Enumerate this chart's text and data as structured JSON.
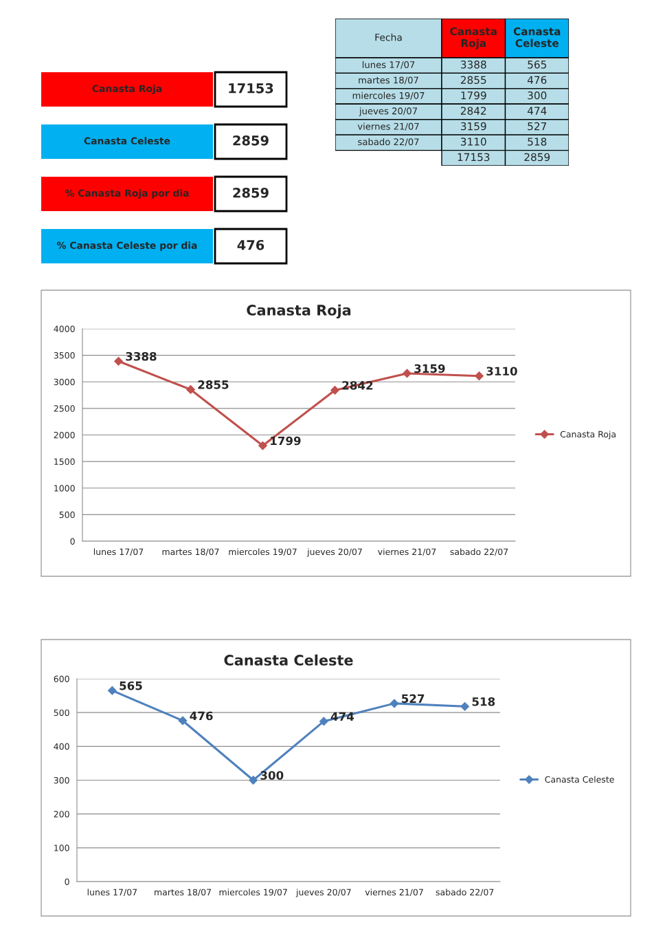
{
  "chart_data": [
    {
      "type": "other",
      "categories": [
        "Canasta Roja",
        "Canasta Celeste",
        "% Canasta Roja por dia",
        "% Canasta Celeste por dia"
      ],
      "values": [
        17153,
        2859,
        2859,
        476
      ],
      "data_labels": true
    },
    {
      "type": "other",
      "xlabel": "Fecha",
      "categories": [
        "lunes 17/07",
        "martes 18/07",
        "miercoles 19/07",
        "jueves 20/07",
        "viernes 21/07",
        "sabado 22/07"
      ],
      "series": [
        {
          "name": "Canasta Roja",
          "values": [
            3388,
            2855,
            1799,
            2842,
            3159,
            3110
          ]
        },
        {
          "name": "Canasta Celeste",
          "values": [
            565,
            476,
            300,
            474,
            527,
            518
          ]
        }
      ],
      "totals": [
        "17153",
        "2859"
      ],
      "data_labels": true
    },
    {
      "type": "line",
      "title": "Canasta Roja",
      "categories": [
        "lunes 17/07",
        "martes 18/07",
        "miercoles 19/07",
        "jueves 20/07",
        "viernes 21/07",
        "sabado 22/07"
      ],
      "series": [
        {
          "name": "Canasta Roja",
          "color": "#c0504d",
          "values": [
            3388,
            2855,
            1799,
            2842,
            3159,
            3110
          ]
        }
      ],
      "ylim": [
        0,
        4000
      ],
      "yticks": [
        0,
        500,
        1000,
        1500,
        2000,
        2500,
        3000,
        3500,
        4000
      ],
      "grid": "y",
      "legend": "right",
      "marker": "diamond",
      "line_style": "solid",
      "data_labels": true
    },
    {
      "type": "line",
      "title": "Canasta Celeste",
      "categories": [
        "lunes 17/07",
        "martes 18/07",
        "miercoles 19/07",
        "jueves 20/07",
        "viernes 21/07",
        "sabado 22/07"
      ],
      "series": [
        {
          "name": "Canasta Celeste",
          "color": "#4f81bd",
          "values": [
            565,
            476,
            300,
            474,
            527,
            518
          ]
        }
      ],
      "ylim": [
        0,
        600
      ],
      "yticks": [
        0,
        100,
        200,
        300,
        400,
        500,
        600
      ],
      "grid": "y",
      "legend": "right",
      "marker": "diamond",
      "line_style": "solid",
      "data_labels": true
    }
  ]
}
